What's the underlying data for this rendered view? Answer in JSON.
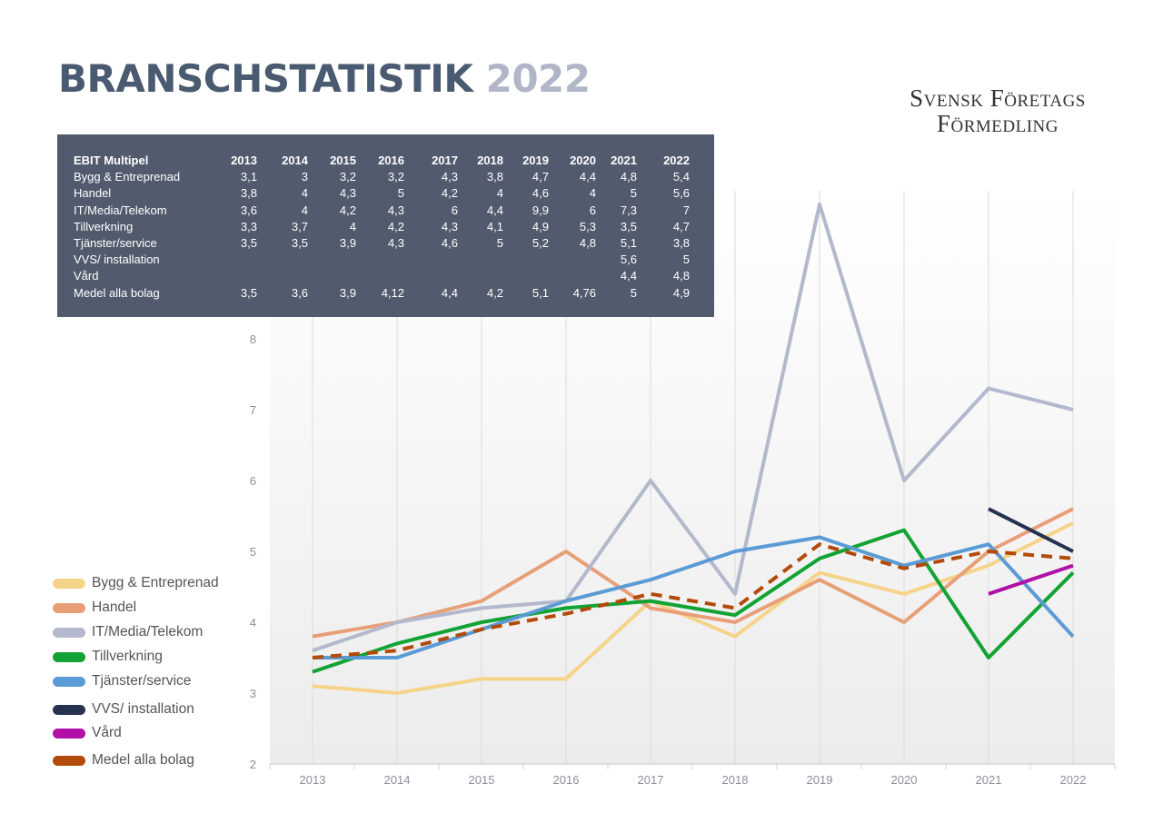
{
  "header": {
    "title_main": "BRANSCHSTATISTIK",
    "title_year": "2022",
    "brand_line1": "Svensk Företags",
    "brand_line2": "Förmedling"
  },
  "table": {
    "heading": "EBIT Multipel",
    "years": [
      "2013",
      "2014",
      "2015",
      "2016",
      "2017",
      "2018",
      "2019",
      "2020",
      "2021",
      "2022"
    ],
    "rows": [
      {
        "label": "Bygg & Entreprenad",
        "cells": [
          "3,1",
          "3",
          "3,2",
          "3,2",
          "4,3",
          "3,8",
          "4,7",
          "4,4",
          "4,8",
          "5,4"
        ]
      },
      {
        "label": "Handel",
        "cells": [
          "3,8",
          "4",
          "4,3",
          "5",
          "4,2",
          "4",
          "4,6",
          "4",
          "5",
          "5,6"
        ]
      },
      {
        "label": "IT/Media/Telekom",
        "cells": [
          "3,6",
          "4",
          "4,2",
          "4,3",
          "6",
          "4,4",
          "9,9",
          "6",
          "7,3",
          "7"
        ]
      },
      {
        "label": "Tillverkning",
        "cells": [
          "3,3",
          "3,7",
          "4",
          "4,2",
          "4,3",
          "4,1",
          "4,9",
          "5,3",
          "3,5",
          "4,7"
        ]
      },
      {
        "label": "Tjänster/service",
        "cells": [
          "3,5",
          "3,5",
          "3,9",
          "4,3",
          "4,6",
          "5",
          "5,2",
          "4,8",
          "5,1",
          "3,8"
        ]
      },
      {
        "label": "VVS/ installation",
        "cells": [
          "",
          "",
          "",
          "",
          "",
          "",
          "",
          "",
          "5,6",
          "5"
        ]
      },
      {
        "label": "Vård",
        "cells": [
          "",
          "",
          "",
          "",
          "",
          "",
          "",
          "",
          "4,4",
          "4,8"
        ]
      },
      {
        "label": "Medel alla bolag",
        "cells": [
          "3,5",
          "3,6",
          "3,9",
          "4,12",
          "4,4",
          "4,2",
          "5,1",
          "4,76",
          "5",
          "4,9"
        ]
      }
    ]
  },
  "chart_data": {
    "type": "line",
    "title": "",
    "xlabel": "",
    "ylabel": "",
    "categories": [
      "2013",
      "2014",
      "2015",
      "2016",
      "2017",
      "2018",
      "2019",
      "2020",
      "2021",
      "2022"
    ],
    "ylim": [
      2,
      10
    ],
    "yticks": [
      2,
      3,
      4,
      5,
      6,
      7,
      8
    ],
    "grid": true,
    "legend": "left",
    "series": [
      {
        "name": "Bygg & Entreprenad",
        "color": "#f5d48a",
        "dashed": false,
        "values": [
          3.1,
          3,
          3.2,
          3.2,
          4.3,
          3.8,
          4.7,
          4.4,
          4.8,
          5.4
        ]
      },
      {
        "name": "Handel",
        "color": "#e89f78",
        "dashed": false,
        "values": [
          3.8,
          4,
          4.3,
          5,
          4.2,
          4,
          4.6,
          4,
          5,
          5.6
        ]
      },
      {
        "name": "IT/Media/Telekom",
        "color": "#b3b8cc",
        "dashed": false,
        "values": [
          3.6,
          4,
          4.2,
          4.3,
          6,
          4.4,
          9.9,
          6,
          7.3,
          7
        ]
      },
      {
        "name": "Tillverkning",
        "color": "#12a334",
        "dashed": false,
        "values": [
          3.3,
          3.7,
          4,
          4.2,
          4.3,
          4.1,
          4.9,
          5.3,
          3.5,
          4.7
        ]
      },
      {
        "name": "Tjänster/service",
        "color": "#5b9bd5",
        "dashed": false,
        "values": [
          3.5,
          3.5,
          3.9,
          4.3,
          4.6,
          5,
          5.2,
          4.8,
          5.1,
          3.8
        ]
      },
      {
        "name": "VVS/ installation",
        "color": "#26324f",
        "dashed": false,
        "values": [
          null,
          null,
          null,
          null,
          null,
          null,
          null,
          null,
          5.6,
          5
        ]
      },
      {
        "name": "Vård",
        "color": "#b010a8",
        "dashed": false,
        "values": [
          null,
          null,
          null,
          null,
          null,
          null,
          null,
          null,
          4.4,
          4.8
        ]
      },
      {
        "name": "Medel alla bolag",
        "color": "#b24a0a",
        "dashed": true,
        "values": [
          3.5,
          3.6,
          3.9,
          4.12,
          4.4,
          4.2,
          5.1,
          4.76,
          5,
          4.9
        ]
      }
    ]
  }
}
